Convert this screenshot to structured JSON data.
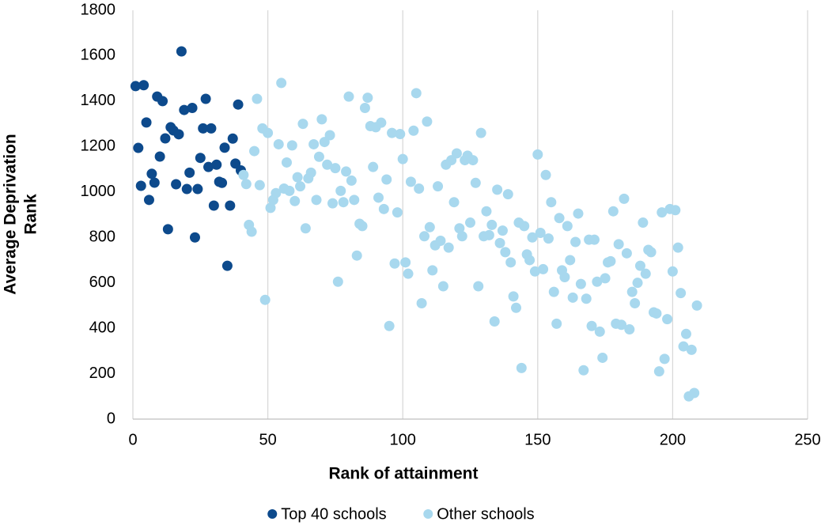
{
  "chart_data": {
    "type": "scatter",
    "xlabel": "Rank of attainment",
    "ylabel": [
      "Average Deprivation",
      "Rank"
    ],
    "xlim": [
      0,
      250
    ],
    "xticks": [
      0,
      50,
      100,
      150,
      200,
      250
    ],
    "ylim": [
      0,
      1800
    ],
    "yticks": [
      0,
      200,
      400,
      600,
      800,
      1000,
      1200,
      1400,
      1600,
      1800
    ],
    "grid": "x",
    "legend": "bottom",
    "series": [
      {
        "name": "Top 40 schools",
        "color": "#0d4a8c",
        "x": [
          1,
          4,
          2,
          3,
          5,
          6,
          7,
          8,
          9,
          10,
          11,
          12,
          13,
          14,
          15,
          16,
          17,
          18,
          19,
          20,
          21,
          22,
          23,
          24,
          25,
          26,
          27,
          28,
          29,
          30,
          31,
          32,
          33,
          34,
          35,
          36,
          37,
          38,
          39,
          40
        ],
        "values": [
          1466,
          1470,
          1194,
          1027,
          1306,
          965,
          1080,
          1041,
          1420,
          1156,
          1400,
          1236,
          836,
          1285,
          1271,
          1034,
          1254,
          1619,
          1361,
          1013,
          1085,
          1370,
          800,
          1013,
          1150,
          1280,
          1410,
          1110,
          1280,
          940,
          1120,
          1045,
          1040,
          1195,
          675,
          940,
          1235,
          1125,
          1385,
          1095
        ]
      },
      {
        "name": "Other schools",
        "color": "#a8d8ee",
        "x": [
          41,
          42,
          43,
          44,
          45,
          46,
          47,
          48,
          49,
          50,
          51,
          52,
          53,
          54,
          55,
          56,
          57,
          58,
          59,
          60,
          61,
          62,
          63,
          64,
          65,
          66,
          67,
          68,
          69,
          70,
          71,
          72,
          73,
          74,
          75,
          76,
          77,
          78,
          79,
          80,
          81,
          82,
          83,
          84,
          85,
          86,
          87,
          88,
          89,
          90,
          91,
          92,
          93,
          94,
          95,
          96,
          97,
          98,
          99,
          100,
          101,
          102,
          103,
          104,
          105,
          106,
          107,
          108,
          109,
          110,
          111,
          112,
          113,
          114,
          115,
          116,
          117,
          118,
          119,
          120,
          121,
          122,
          123,
          124,
          125,
          126,
          127,
          128,
          129,
          130,
          131,
          132,
          133,
          134,
          135,
          136,
          137,
          138,
          139,
          140,
          141,
          142,
          143,
          144,
          145,
          146,
          147,
          148,
          149,
          150,
          151,
          152,
          153,
          154,
          155,
          156,
          157,
          158,
          159,
          160,
          161,
          162,
          163,
          164,
          165,
          166,
          167,
          168,
          169,
          170,
          171,
          172,
          173,
          174,
          175,
          176,
          177,
          178,
          179,
          180,
          181,
          182,
          183,
          184,
          185,
          186,
          187,
          188,
          189,
          190,
          191,
          192,
          193,
          194,
          195,
          196,
          197,
          198,
          199,
          200,
          201,
          202,
          203,
          204,
          205,
          206,
          207,
          208,
          209
        ],
        "values": [
          1075,
          1035,
          855,
          825,
          1180,
          1410,
          1030,
          1280,
          525,
          1260,
          930,
          965,
          995,
          1210,
          1480,
          1015,
          1130,
          1005,
          1205,
          960,
          1065,
          1025,
          1300,
          840,
          1060,
          1085,
          1210,
          965,
          1155,
          1320,
          1220,
          1120,
          1250,
          950,
          1105,
          605,
          1005,
          955,
          1090,
          1420,
          1050,
          965,
          720,
          860,
          850,
          1370,
          1415,
          1290,
          1110,
          1285,
          975,
          1305,
          925,
          1055,
          410,
          1260,
          685,
          910,
          1255,
          1145,
          690,
          640,
          1045,
          1270,
          1435,
          1015,
          510,
          805,
          1310,
          845,
          655,
          765,
          1025,
          785,
          585,
          1120,
          755,
          1140,
          955,
          1170,
          840,
          805,
          1140,
          1160,
          865,
          1140,
          1040,
          585,
          1260,
          805,
          915,
          810,
          855,
          430,
          1010,
          775,
          830,
          735,
          990,
          690,
          540,
          490,
          865,
          225,
          850,
          725,
          700,
          800,
          650,
          1165,
          820,
          660,
          1075,
          795,
          955,
          560,
          420,
          885,
          655,
          625,
          850,
          700,
          535,
          780,
          905,
          595,
          215,
          530,
          790,
          410,
          790,
          605,
          385,
          270,
          620,
          690,
          695,
          915,
          420,
          770,
          415,
          970,
          730,
          395,
          560,
          510,
          600,
          675,
          865,
          640,
          745,
          735,
          470,
          465,
          210,
          910,
          265,
          440,
          925,
          650,
          920,
          755,
          555,
          320,
          375,
          100,
          305,
          115,
          500
        ]
      }
    ]
  }
}
